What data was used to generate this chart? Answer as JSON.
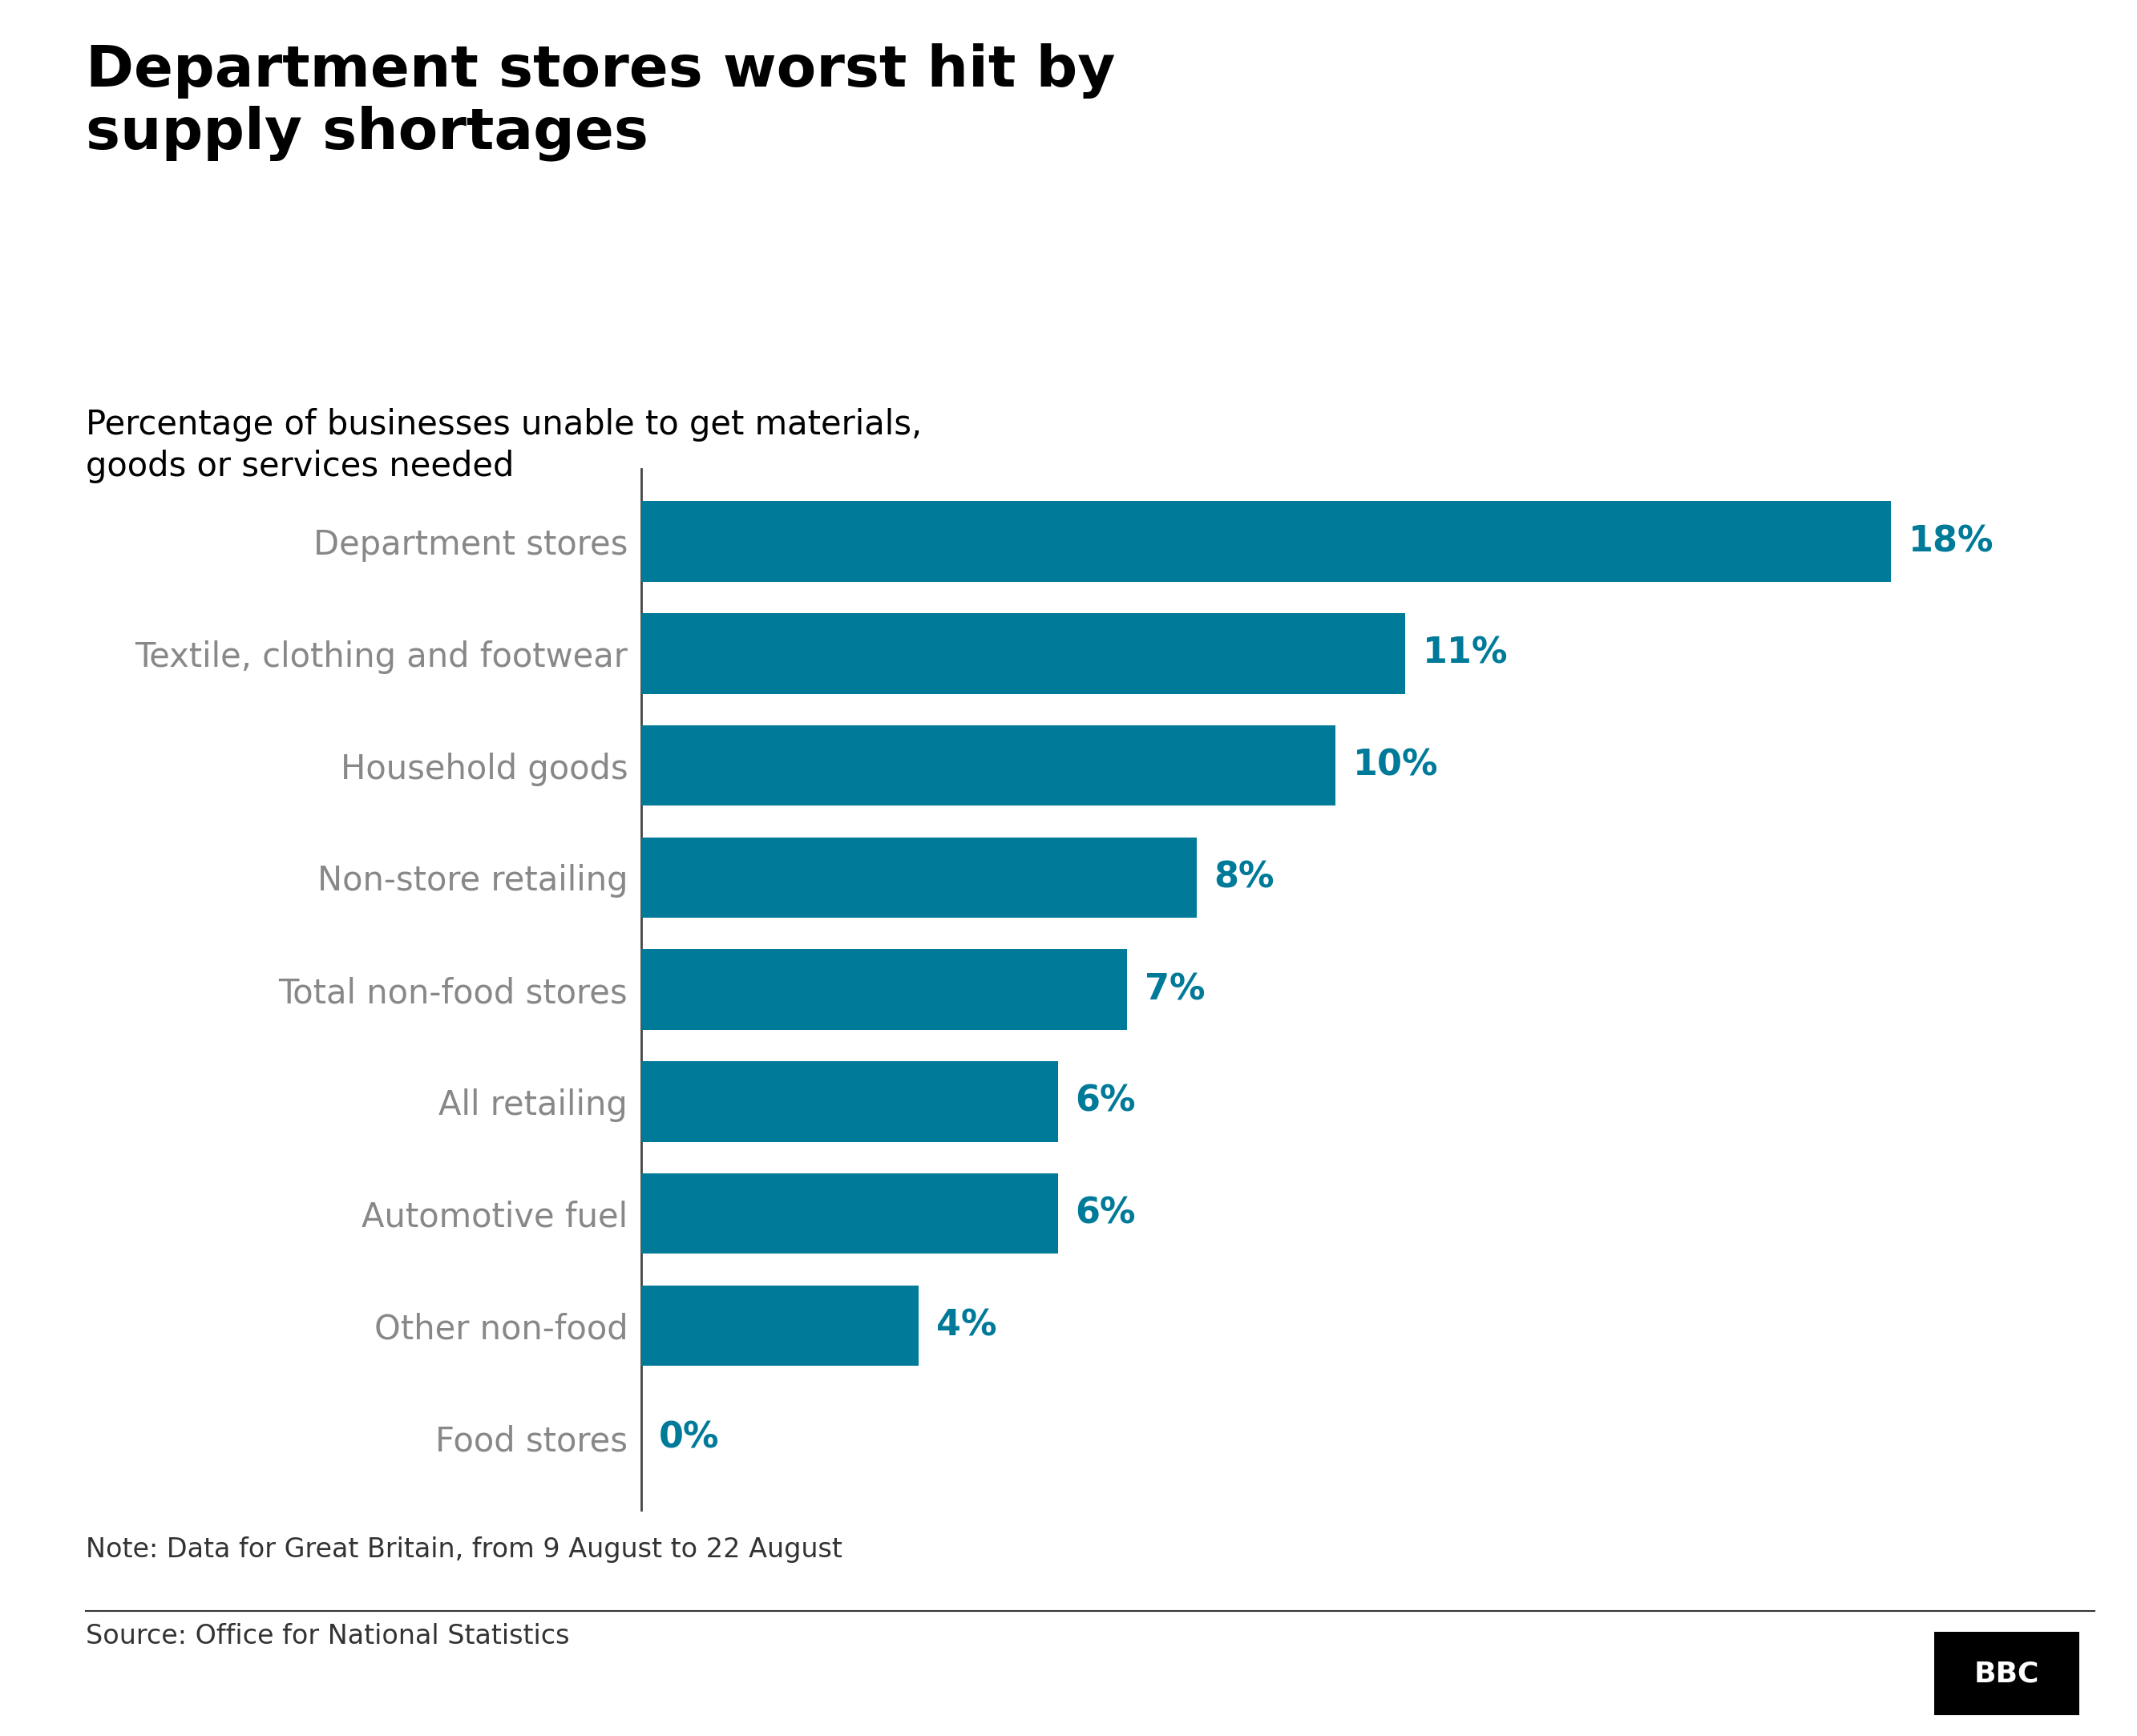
{
  "title": "Department stores worst hit by\nsupply shortages",
  "subtitle": "Percentage of businesses unable to get materials,\ngoods or services needed",
  "categories": [
    "Department stores",
    "Textile, clothing and footwear",
    "Household goods",
    "Non-store retailing",
    "Total non-food stores",
    "All retailing",
    "Automotive fuel",
    "Other non-food",
    "Food stores"
  ],
  "values": [
    18,
    11,
    10,
    8,
    7,
    6,
    6,
    4,
    0
  ],
  "bar_color": "#007a99",
  "label_color": "#007a99",
  "category_color": "#888888",
  "title_color": "#000000",
  "subtitle_color": "#000000",
  "background_color": "#ffffff",
  "note": "Note: Data for Great Britain, from 9 August to 22 August",
  "source": "Source: Office for National Statistics",
  "xlim": [
    0,
    20
  ],
  "bar_height": 0.72,
  "title_fontsize": 52,
  "subtitle_fontsize": 30,
  "category_fontsize": 30,
  "value_fontsize": 32,
  "note_fontsize": 24,
  "source_fontsize": 24
}
